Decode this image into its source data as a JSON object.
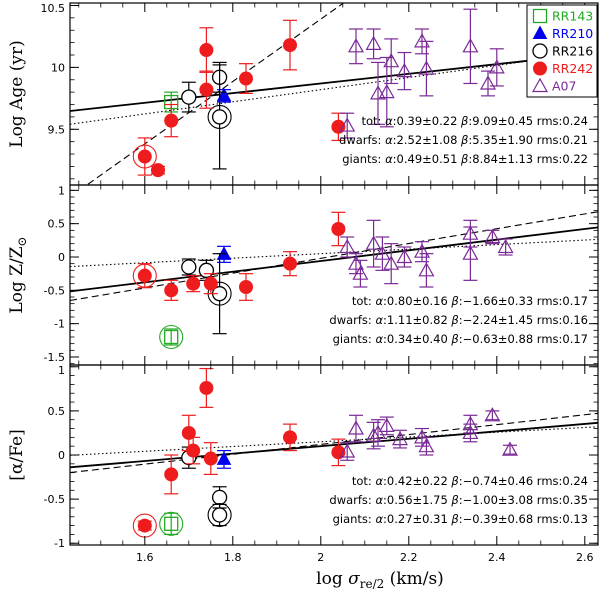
{
  "chart_data": {
    "type": "scatter",
    "x": {
      "label_prefix": "log ",
      "label_symbol": "σ",
      "label_subscript": "re/2",
      "label_suffix": " (km/s)",
      "range": [
        1.43,
        2.63
      ],
      "ticks": [
        1.6,
        1.8,
        2.0,
        2.2,
        2.4,
        2.6
      ],
      "tick_labels": [
        "1.6",
        "1.8",
        "2",
        "2.2",
        "2.4",
        "2.6"
      ]
    },
    "legend": {
      "placement": "top-right",
      "entries": [
        {
          "key": "RR143",
          "label": "RR143",
          "color": "#22aa22",
          "marker": "open-square"
        },
        {
          "key": "RR210",
          "label": "RR210",
          "color": "#0000ee",
          "marker": "filled-triangle"
        },
        {
          "key": "RR216",
          "label": "RR216",
          "color": "#000000",
          "marker": "open-circle"
        },
        {
          "key": "RR242",
          "label": "RR242",
          "color": "#ee1c1c",
          "marker": "filled-circle"
        },
        {
          "key": "A07",
          "label": "A07",
          "color": "#7a2a96",
          "marker": "open-triangle"
        }
      ]
    },
    "panels": [
      {
        "id": "age",
        "ylabel": "Log Age (yr)",
        "ylim": [
          9.05,
          10.52
        ],
        "yticks": [
          9.5,
          10,
          10.5
        ],
        "ytick_labels": [
          "9.5",
          "10",
          "10.5"
        ],
        "lines": {
          "solid": {
            "slope": 0.39,
            "intercept": 9.09
          },
          "dashed": {
            "slope": 2.52,
            "intercept": 5.35
          },
          "dotted": {
            "slope": 0.49,
            "intercept": 8.84
          }
        },
        "fits": [
          {
            "prefix": "tot:",
            "alpha": "0.39±0.22",
            "beta": "9.09±0.45",
            "rms": "0.24"
          },
          {
            "prefix": "dwarfs:",
            "alpha": "2.52±1.08",
            "beta": "5.35±1.90",
            "rms": "0.21"
          },
          {
            "prefix": "giants:",
            "alpha": "0.49±0.51",
            "beta": "8.84±1.13",
            "rms": "0.22"
          }
        ],
        "series": [
          {
            "name": "RR143",
            "points": [
              {
                "x": 1.66,
                "y": 9.72,
                "err": 0.08,
                "ring": false
              }
            ]
          },
          {
            "name": "RR210",
            "points": [
              {
                "x": 1.78,
                "y": 9.77,
                "err": 0.05,
                "ring": false
              }
            ]
          },
          {
            "name": "RR216",
            "points": [
              {
                "x": 1.7,
                "y": 9.76,
                "err": 0.12,
                "ring": false
              },
              {
                "x": 1.77,
                "y": 9.92,
                "err": 0.12,
                "ring": false
              },
              {
                "x": 1.77,
                "y": 9.6,
                "err": 0.42,
                "ring": true
              }
            ]
          },
          {
            "name": "RR242",
            "points": [
              {
                "x": 1.6,
                "y": 9.28,
                "err": 0.15,
                "ring": true
              },
              {
                "x": 1.66,
                "y": 9.57,
                "err": 0.13,
                "ring": false
              },
              {
                "x": 1.63,
                "y": 9.17,
                "err": 0.03,
                "ring": false
              },
              {
                "x": 1.74,
                "y": 10.14,
                "err": 0.18,
                "ring": false
              },
              {
                "x": 1.74,
                "y": 9.82,
                "err": 0.15,
                "ring": false
              },
              {
                "x": 1.83,
                "y": 9.91,
                "err": 0.12,
                "ring": false
              },
              {
                "x": 1.93,
                "y": 10.18,
                "err": 0.2,
                "ring": false
              },
              {
                "x": 2.04,
                "y": 9.52,
                "err": 0.11,
                "ring": false
              }
            ]
          },
          {
            "name": "A07",
            "points": [
              {
                "x": 2.06,
                "y": 9.53,
                "err": 0.1
              },
              {
                "x": 2.08,
                "y": 10.17,
                "err": 0.14
              },
              {
                "x": 2.12,
                "y": 10.19,
                "err": 0.12
              },
              {
                "x": 2.13,
                "y": 9.79,
                "err": 0.25
              },
              {
                "x": 2.15,
                "y": 9.8,
                "err": 0.28
              },
              {
                "x": 2.16,
                "y": 10.05,
                "err": 0.18
              },
              {
                "x": 2.19,
                "y": 9.97,
                "err": 0.15
              },
              {
                "x": 2.23,
                "y": 10.21,
                "err": 0.1
              },
              {
                "x": 2.24,
                "y": 9.99,
                "err": 0.22
              },
              {
                "x": 2.34,
                "y": 10.17,
                "err": 0.3
              },
              {
                "x": 2.38,
                "y": 9.87,
                "err": 0.1
              },
              {
                "x": 2.4,
                "y": 10.0,
                "err": 0.15
              }
            ]
          }
        ]
      },
      {
        "id": "metallicity",
        "ylabel_prefix": "Log Z/Z",
        "ylabel_sub": "⊙",
        "ylim": [
          -1.62,
          1.08
        ],
        "yticks": [
          -1.5,
          -1,
          -0.5,
          0,
          0.5,
          1
        ],
        "ytick_labels": [
          "-1.5",
          "-1",
          "-0.5",
          "0",
          "0.5",
          "1"
        ],
        "lines": {
          "solid": {
            "slope": 0.8,
            "intercept": -1.66
          },
          "dashed": {
            "slope": 1.11,
            "intercept": -2.24
          },
          "dotted": {
            "slope": 0.34,
            "intercept": -0.63
          }
        },
        "fits": [
          {
            "prefix": "tot:",
            "alpha": "0.80±0.16",
            "beta": "−1.66±0.33",
            "rms": "0.17"
          },
          {
            "prefix": "dwarfs:",
            "alpha": "1.11±0.82",
            "beta": "−2.24±1.45",
            "rms": "0.16"
          },
          {
            "prefix": "giants:",
            "alpha": "0.34±0.40",
            "beta": "−0.63±0.88",
            "rms": "0.17"
          }
        ],
        "series": [
          {
            "name": "RR143",
            "points": [
              {
                "x": 1.66,
                "y": -1.2,
                "err": 0.12,
                "ring": true
              }
            ]
          },
          {
            "name": "RR210",
            "points": [
              {
                "x": 1.78,
                "y": 0.04,
                "err": 0.12,
                "ring": false
              }
            ]
          },
          {
            "name": "RR216",
            "points": [
              {
                "x": 1.7,
                "y": -0.15,
                "err": 0.12,
                "ring": false
              },
              {
                "x": 1.74,
                "y": -0.2,
                "err": 0.15,
                "ring": false
              },
              {
                "x": 1.77,
                "y": -0.55,
                "err": 0.6,
                "ring": true
              }
            ]
          },
          {
            "name": "RR242",
            "points": [
              {
                "x": 1.6,
                "y": -0.28,
                "err": 0.18,
                "ring": true
              },
              {
                "x": 1.66,
                "y": -0.5,
                "err": 0.15,
                "ring": false
              },
              {
                "x": 1.71,
                "y": -0.4,
                "err": 0.12,
                "ring": false
              },
              {
                "x": 1.75,
                "y": -0.4,
                "err": 0.15,
                "ring": false
              },
              {
                "x": 1.83,
                "y": -0.45,
                "err": 0.2,
                "ring": false
              },
              {
                "x": 1.93,
                "y": -0.1,
                "err": 0.18,
                "ring": false
              },
              {
                "x": 2.04,
                "y": 0.42,
                "err": 0.25,
                "ring": false
              }
            ]
          },
          {
            "name": "A07",
            "points": [
              {
                "x": 2.06,
                "y": 0.15,
                "err": 0.15
              },
              {
                "x": 2.08,
                "y": -0.1,
                "err": 0.15
              },
              {
                "x": 2.09,
                "y": -0.25,
                "err": 0.2
              },
              {
                "x": 2.12,
                "y": 0.2,
                "err": 0.35
              },
              {
                "x": 2.14,
                "y": 0.05,
                "err": 0.25
              },
              {
                "x": 2.16,
                "y": -0.1,
                "err": 0.3
              },
              {
                "x": 2.19,
                "y": 0.0,
                "err": 0.15
              },
              {
                "x": 2.23,
                "y": 0.08,
                "err": 0.15
              },
              {
                "x": 2.24,
                "y": -0.2,
                "err": 0.25
              },
              {
                "x": 2.34,
                "y": 0.35,
                "err": 0.2
              },
              {
                "x": 2.34,
                "y": 0.05,
                "err": 0.4
              },
              {
                "x": 2.39,
                "y": 0.3,
                "err": 0.1
              },
              {
                "x": 2.42,
                "y": 0.15,
                "err": 0.12
              }
            ]
          }
        ]
      },
      {
        "id": "alpha",
        "ylabel": "[α/Fe]",
        "ylim": [
          -1.02,
          1.02
        ],
        "yticks": [
          -1,
          -0.5,
          0,
          0.5,
          1
        ],
        "ytick_labels": [
          "-1",
          "-0.5",
          "0",
          "0.5",
          "1"
        ],
        "lines": {
          "solid": {
            "slope": 0.42,
            "intercept": -0.74
          },
          "dashed": {
            "slope": 0.56,
            "intercept": -1.0
          },
          "dotted": {
            "slope": 0.27,
            "intercept": -0.39
          }
        },
        "fits": [
          {
            "prefix": "tot:",
            "alpha": "0.42±0.22",
            "beta": "−0.74±0.46",
            "rms": "0.24"
          },
          {
            "prefix": "dwarfs:",
            "alpha": "0.56±1.75",
            "beta": "−1.00±3.08",
            "rms": "0.35"
          },
          {
            "prefix": "giants:",
            "alpha": "0.27±0.31",
            "beta": "−0.39±0.68",
            "rms": "0.13"
          }
        ],
        "series": [
          {
            "name": "RR143",
            "points": [
              {
                "x": 1.66,
                "y": -0.78,
                "err": 0.12,
                "ring": true
              }
            ]
          },
          {
            "name": "RR210",
            "points": [
              {
                "x": 1.78,
                "y": -0.05,
                "err": 0.1,
                "ring": false
              }
            ]
          },
          {
            "name": "RR216",
            "points": [
              {
                "x": 1.7,
                "y": -0.03,
                "err": 0.12,
                "ring": false
              },
              {
                "x": 1.77,
                "y": -0.48,
                "err": 0.12,
                "ring": false
              },
              {
                "x": 1.77,
                "y": -0.68,
                "err": 0.12,
                "ring": true
              }
            ]
          },
          {
            "name": "RR242",
            "points": [
              {
                "x": 1.6,
                "y": -0.8,
                "err": 0.05,
                "ring": true
              },
              {
                "x": 1.66,
                "y": -0.22,
                "err": 0.22,
                "ring": false
              },
              {
                "x": 1.7,
                "y": 0.25,
                "err": 0.2,
                "ring": false
              },
              {
                "x": 1.71,
                "y": 0.05,
                "err": 0.15,
                "ring": false
              },
              {
                "x": 1.74,
                "y": 0.76,
                "err": 0.22,
                "ring": false
              },
              {
                "x": 1.75,
                "y": -0.04,
                "err": 0.18,
                "ring": false
              },
              {
                "x": 1.93,
                "y": 0.2,
                "err": 0.15,
                "ring": false
              },
              {
                "x": 2.04,
                "y": 0.03,
                "err": 0.15,
                "ring": false
              }
            ]
          },
          {
            "name": "A07",
            "points": [
              {
                "x": 2.06,
                "y": 0.04,
                "err": 0.1
              },
              {
                "x": 2.08,
                "y": 0.3,
                "err": 0.15
              },
              {
                "x": 2.12,
                "y": 0.22,
                "err": 0.15
              },
              {
                "x": 2.13,
                "y": 0.25,
                "err": 0.15
              },
              {
                "x": 2.15,
                "y": 0.33,
                "err": 0.1
              },
              {
                "x": 2.18,
                "y": 0.18,
                "err": 0.1
              },
              {
                "x": 2.23,
                "y": 0.2,
                "err": 0.1
              },
              {
                "x": 2.24,
                "y": 0.1,
                "err": 0.1
              },
              {
                "x": 2.34,
                "y": 0.25,
                "err": 0.1
              },
              {
                "x": 2.34,
                "y": 0.35,
                "err": 0.1
              },
              {
                "x": 2.39,
                "y": 0.45,
                "err": 0.05
              },
              {
                "x": 2.43,
                "y": 0.06,
                "err": 0.05
              }
            ]
          }
        ]
      }
    ]
  }
}
